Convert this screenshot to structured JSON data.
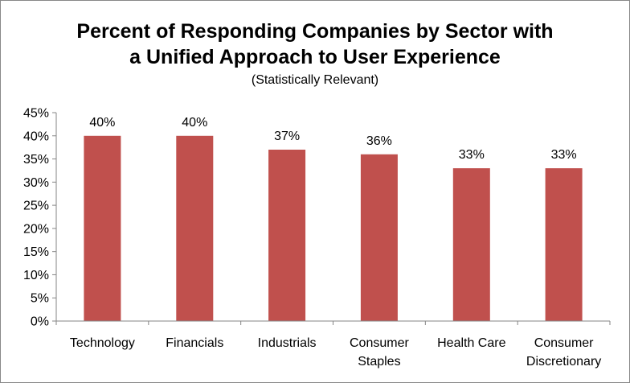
{
  "chart_data": {
    "type": "bar",
    "title_line1": "Percent of Responding Companies by Sector with",
    "title_line2": "a Unified Approach to User Experience",
    "subtitle": "(Statistically  Relevant)",
    "categories": [
      "Technology",
      "Financials",
      "Industrials",
      "Consumer Staples",
      "Health Care",
      "Consumer Discretionary"
    ],
    "category_lines": [
      [
        "Technology"
      ],
      [
        "Financials"
      ],
      [
        "Industrials"
      ],
      [
        "Consumer",
        "Staples"
      ],
      [
        "Health Care"
      ],
      [
        "Consumer",
        "Discretionary"
      ]
    ],
    "values": [
      40,
      40,
      37,
      36,
      33,
      33
    ],
    "data_labels": [
      "40%",
      "40%",
      "37%",
      "36%",
      "33%",
      "33%"
    ],
    "y_ticks": [
      0,
      5,
      10,
      15,
      20,
      25,
      30,
      35,
      40,
      45
    ],
    "y_tick_labels": [
      "0%",
      "5%",
      "10%",
      "15%",
      "20%",
      "25%",
      "30%",
      "35%",
      "40%",
      "45%"
    ],
    "ylim": [
      0,
      45
    ],
    "xlabel": "",
    "ylabel": "",
    "grid": false,
    "legend": "none",
    "bar_color": "#C0504D",
    "axis_color": "#868686"
  }
}
